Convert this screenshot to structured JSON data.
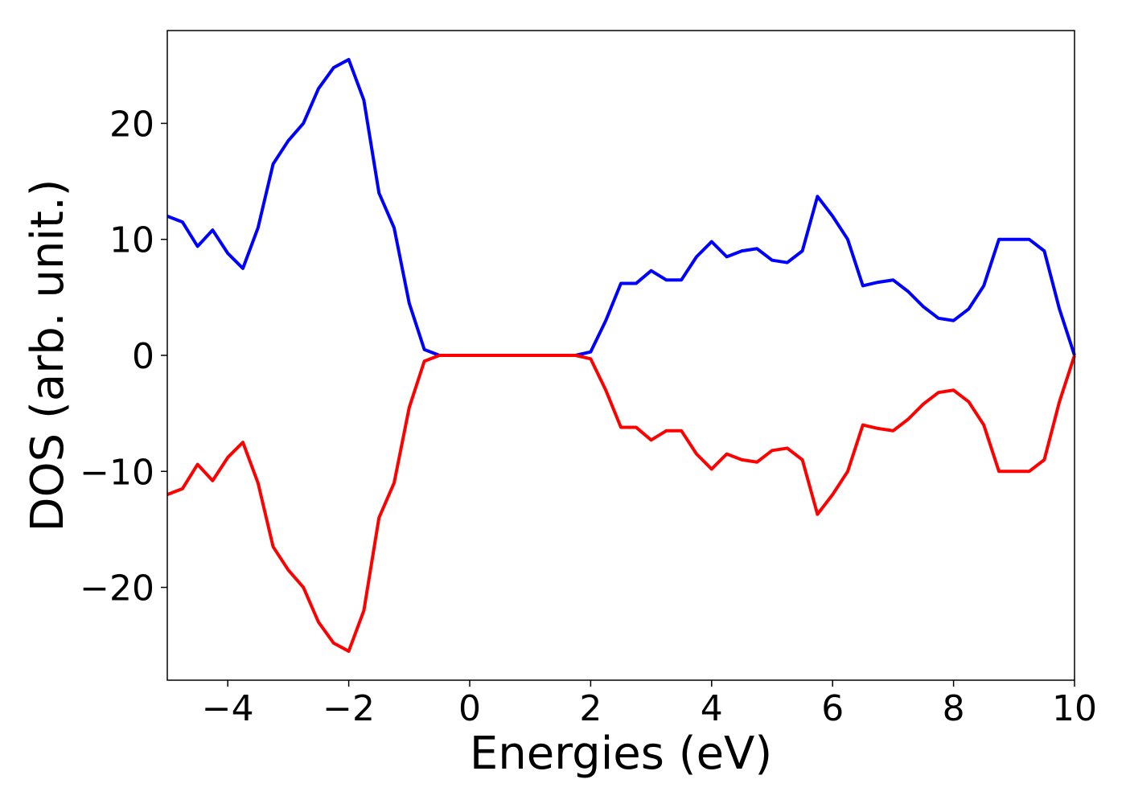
{
  "chart_data": {
    "type": "line",
    "xlabel": "Energies (eV)",
    "ylabel": "DOS (arb. unit.)",
    "x": [
      -5,
      -4.75,
      -4.5,
      -4.25,
      -4,
      -3.75,
      -3.5,
      -3.25,
      -3,
      -2.75,
      -2.5,
      -2.25,
      -2,
      -1.75,
      -1.5,
      -1.25,
      -1,
      -0.75,
      -0.5,
      -0.25,
      0,
      0.25,
      0.5,
      0.75,
      1,
      1.25,
      1.5,
      1.75,
      2,
      2.25,
      2.5,
      2.75,
      3,
      3.25,
      3.5,
      3.75,
      4,
      4.25,
      4.5,
      4.75,
      5,
      5.25,
      5.5,
      5.75,
      6,
      6.25,
      6.5,
      6.75,
      7,
      7.25,
      7.5,
      7.75,
      8,
      8.25,
      8.5,
      8.75,
      9,
      9.25,
      9.5,
      9.75,
      10
    ],
    "series": [
      {
        "color": "#0000ff",
        "values": [
          12,
          11.5,
          9.4,
          10.8,
          8.8,
          7.5,
          11,
          16.5,
          18.5,
          20,
          23,
          24.8,
          25.5,
          22,
          14,
          11,
          4.5,
          0.5,
          0,
          0,
          0,
          0,
          0,
          0,
          0,
          0,
          0,
          0,
          0.3,
          3,
          6.2,
          6.2,
          7.3,
          6.5,
          6.5,
          8.5,
          9.8,
          8.5,
          9,
          9.2,
          8.2,
          8,
          9,
          13.7,
          12,
          10,
          6,
          6.3,
          6.5,
          5.5,
          4.2,
          3.2,
          3,
          4,
          6,
          10,
          10,
          10,
          9,
          4,
          0
        ]
      },
      {
        "color": "#ff0000",
        "values": [
          -12,
          -11.5,
          -9.4,
          -10.8,
          -8.8,
          -7.5,
          -11,
          -16.5,
          -18.5,
          -20,
          -23,
          -24.8,
          -25.5,
          -22,
          -14,
          -11,
          -4.5,
          -0.5,
          0,
          0,
          0,
          0,
          0,
          0,
          0,
          0,
          0,
          0,
          -0.3,
          -3,
          -6.2,
          -6.2,
          -7.3,
          -6.5,
          -6.5,
          -8.5,
          -9.8,
          -8.5,
          -9,
          -9.2,
          -8.2,
          -8,
          -9,
          -13.7,
          -12,
          -10,
          -6,
          -6.3,
          -6.5,
          -5.5,
          -4.2,
          -3.2,
          -3,
          -4,
          -6,
          -10,
          -10,
          -10,
          -9,
          -4,
          0
        ]
      }
    ],
    "xlim": [
      -5,
      10
    ],
    "xticks": [
      {
        "value": -4,
        "label": "−4"
      },
      {
        "value": -2,
        "label": "−2"
      },
      0,
      2,
      4,
      6,
      8,
      10
    ],
    "ylim": [
      -28,
      28
    ],
    "yticks": [
      {
        "value": -20,
        "label": "−20"
      },
      {
        "value": -10,
        "label": "−10"
      },
      0,
      10,
      20
    ]
  }
}
